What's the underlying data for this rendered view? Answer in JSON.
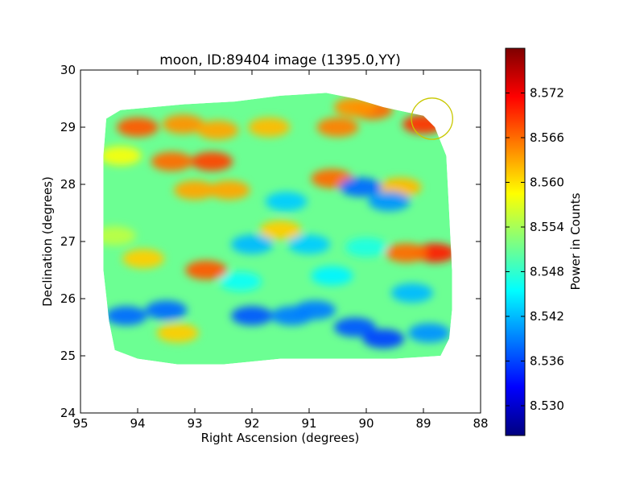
{
  "chart_data": {
    "type": "heatmap",
    "title": "moon, ID:89404 image (1395.0,YY)",
    "xlabel": "Right Ascension (degrees)",
    "ylabel": "Declination (degrees)",
    "xlim": [
      95,
      88
    ],
    "ylim": [
      24,
      30
    ],
    "x_ticks": [
      95,
      94,
      93,
      92,
      91,
      90,
      89,
      88
    ],
    "y_ticks": [
      24,
      25,
      26,
      27,
      28,
      29,
      30
    ],
    "colorbar": {
      "label": "Power in Counts",
      "range": [
        8.526,
        8.578
      ],
      "ticks": [
        "8.572",
        "8.566",
        "8.560",
        "8.554",
        "8.548",
        "8.542",
        "8.536",
        "8.530"
      ],
      "tick_values": [
        8.572,
        8.566,
        8.56,
        8.554,
        8.548,
        8.542,
        8.536,
        8.53
      ],
      "colormap": "jet"
    },
    "map_outline": [
      [
        94.55,
        29.15
      ],
      [
        94.3,
        29.3
      ],
      [
        93.2,
        29.4
      ],
      [
        92.3,
        29.45
      ],
      [
        91.5,
        29.55
      ],
      [
        90.7,
        29.6
      ],
      [
        90.2,
        29.5
      ],
      [
        89.7,
        29.35
      ],
      [
        89.0,
        29.2
      ],
      [
        88.8,
        29.0
      ],
      [
        88.6,
        28.5
      ],
      [
        88.55,
        27.5
      ],
      [
        88.5,
        26.5
      ],
      [
        88.5,
        25.8
      ],
      [
        88.55,
        25.3
      ],
      [
        88.7,
        25.0
      ],
      [
        89.5,
        24.95
      ],
      [
        90.5,
        24.95
      ],
      [
        91.5,
        24.95
      ],
      [
        92.5,
        24.85
      ],
      [
        93.3,
        24.85
      ],
      [
        94.0,
        24.95
      ],
      [
        94.4,
        25.1
      ],
      [
        94.5,
        25.6
      ],
      [
        94.6,
        26.5
      ],
      [
        94.6,
        27.5
      ],
      [
        94.6,
        28.5
      ]
    ],
    "background_level": 8.551,
    "features": [
      {
        "ra": 94.0,
        "dec": 29.0,
        "level": 8.567
      },
      {
        "ra": 93.2,
        "dec": 29.05,
        "level": 8.564
      },
      {
        "ra": 92.6,
        "dec": 28.95,
        "level": 8.563
      },
      {
        "ra": 91.7,
        "dec": 29.0,
        "level": 8.562
      },
      {
        "ra": 90.5,
        "dec": 29.0,
        "level": 8.565
      },
      {
        "ra": 89.0,
        "dec": 29.05,
        "level": 8.569
      },
      {
        "ra": 89.9,
        "dec": 29.3,
        "level": 8.566
      },
      {
        "ra": 90.2,
        "dec": 29.35,
        "level": 8.564
      },
      {
        "ra": 93.4,
        "dec": 28.4,
        "level": 8.566
      },
      {
        "ra": 92.7,
        "dec": 28.4,
        "level": 8.568
      },
      {
        "ra": 93.0,
        "dec": 27.9,
        "level": 8.563
      },
      {
        "ra": 92.4,
        "dec": 27.9,
        "level": 8.563
      },
      {
        "ra": 90.6,
        "dec": 28.1,
        "level": 8.566
      },
      {
        "ra": 89.4,
        "dec": 27.95,
        "level": 8.562
      },
      {
        "ra": 88.8,
        "dec": 26.8,
        "level": 8.57
      },
      {
        "ra": 89.3,
        "dec": 26.8,
        "level": 8.566
      },
      {
        "ra": 92.8,
        "dec": 26.5,
        "level": 8.567
      },
      {
        "ra": 93.9,
        "dec": 26.7,
        "level": 8.561
      },
      {
        "ra": 91.5,
        "dec": 27.2,
        "level": 8.561
      },
      {
        "ra": 90.1,
        "dec": 27.95,
        "level": 8.538
      },
      {
        "ra": 89.6,
        "dec": 27.7,
        "level": 8.54
      },
      {
        "ra": 91.4,
        "dec": 27.7,
        "level": 8.543
      },
      {
        "ra": 92.0,
        "dec": 26.95,
        "level": 8.542
      },
      {
        "ra": 91.0,
        "dec": 26.95,
        "level": 8.543
      },
      {
        "ra": 94.2,
        "dec": 25.7,
        "level": 8.538
      },
      {
        "ra": 93.5,
        "dec": 25.8,
        "level": 8.538
      },
      {
        "ra": 92.0,
        "dec": 25.7,
        "level": 8.537
      },
      {
        "ra": 91.3,
        "dec": 25.7,
        "level": 8.539
      },
      {
        "ra": 90.9,
        "dec": 25.8,
        "level": 8.539
      },
      {
        "ra": 90.2,
        "dec": 25.5,
        "level": 8.537
      },
      {
        "ra": 89.7,
        "dec": 25.3,
        "level": 8.536
      },
      {
        "ra": 88.9,
        "dec": 25.4,
        "level": 8.54
      },
      {
        "ra": 89.2,
        "dec": 26.1,
        "level": 8.542
      },
      {
        "ra": 90.6,
        "dec": 26.4,
        "level": 8.545
      },
      {
        "ra": 93.3,
        "dec": 25.4,
        "level": 8.561
      },
      {
        "ra": 92.2,
        "dec": 26.3,
        "level": 8.546
      },
      {
        "ra": 90.0,
        "dec": 26.9,
        "level": 8.547
      },
      {
        "ra": 94.3,
        "dec": 28.5,
        "level": 8.558
      },
      {
        "ra": 94.4,
        "dec": 27.1,
        "level": 8.555
      }
    ],
    "annotation": {
      "type": "circle",
      "ra": 88.85,
      "dec": 29.15,
      "radius_deg": 0.36,
      "color": "#c8c800"
    }
  }
}
